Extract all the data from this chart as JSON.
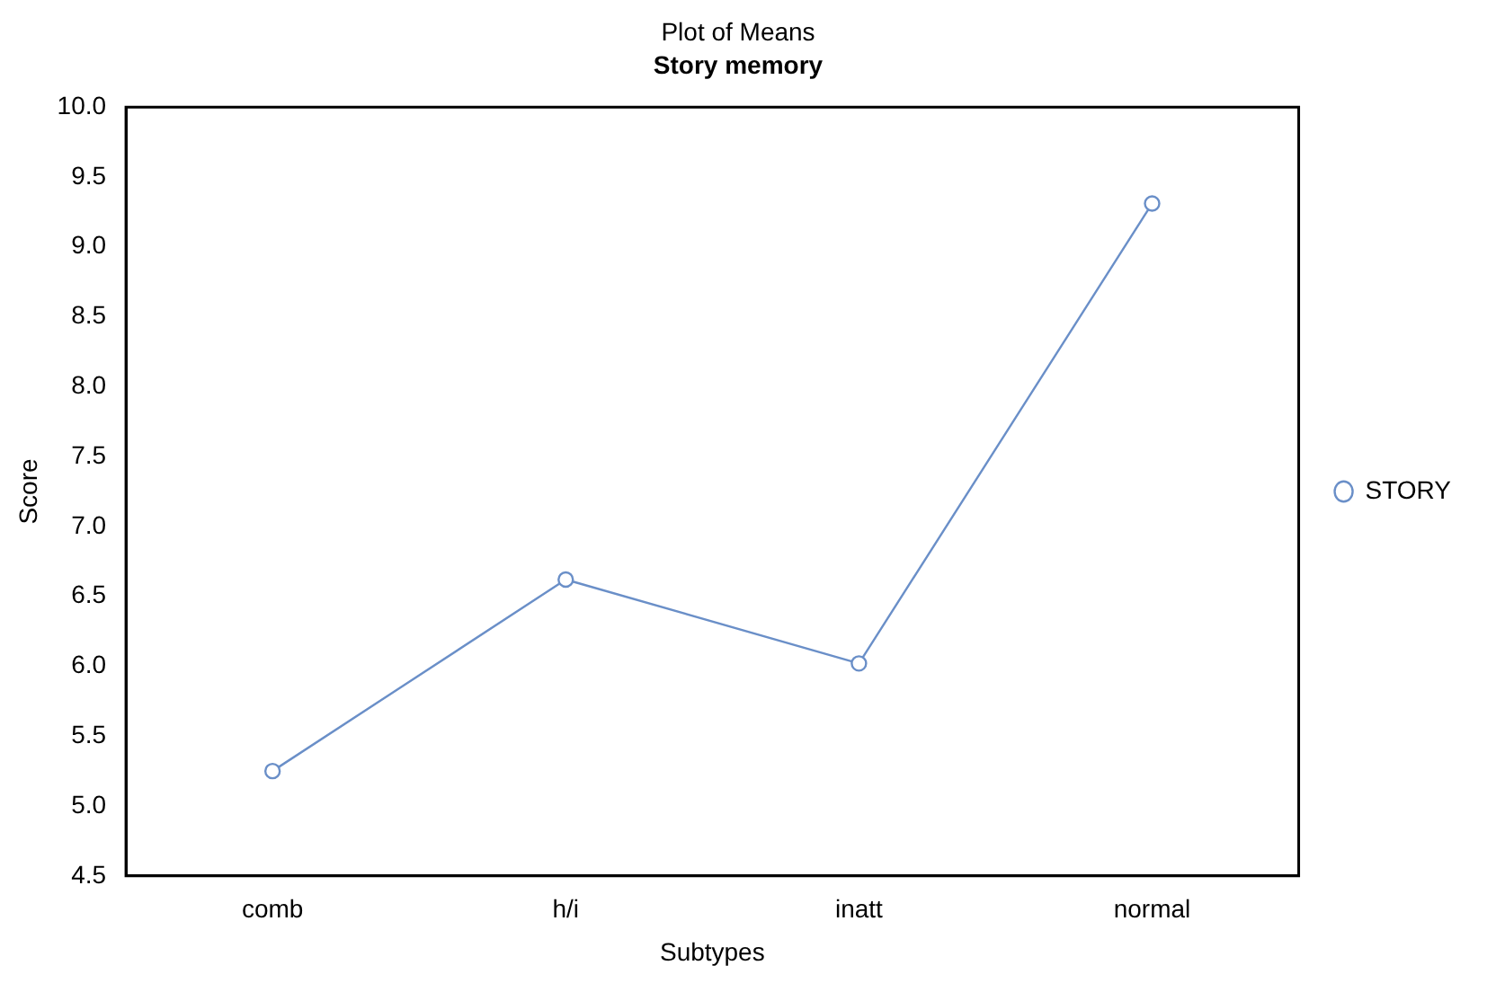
{
  "chart_data": {
    "type": "line",
    "title": "Plot of Means",
    "subtitle": "Story memory",
    "xlabel": "Subtypes",
    "ylabel": "Score",
    "categories": [
      "comb",
      "h/i",
      "inatt",
      "normal"
    ],
    "series": [
      {
        "name": "STORY",
        "color": "#6a8fc8",
        "values": [
          5.25,
          6.62,
          6.02,
          9.31
        ]
      }
    ],
    "ylim": [
      4.5,
      10.0
    ],
    "yticks": [
      {
        "value": 4.5,
        "label": "4.5"
      },
      {
        "value": 5,
        "label": "5.0"
      },
      {
        "value": 5.5,
        "label": "5.5"
      },
      {
        "value": 6,
        "label": "6.0"
      },
      {
        "value": 6.5,
        "label": "6.5"
      },
      {
        "value": 7,
        "label": "7.0"
      },
      {
        "value": 7.5,
        "label": "7.5"
      },
      {
        "value": 8,
        "label": "8.0"
      },
      {
        "value": 8.5,
        "label": "8.5"
      },
      {
        "value": 9,
        "label": "9.0"
      },
      {
        "value": 9.5,
        "label": "9.5"
      },
      {
        "value": 10,
        "label": "10.0"
      }
    ],
    "grid": false,
    "legend": "right",
    "marker": "circle",
    "line_style": "solid"
  }
}
